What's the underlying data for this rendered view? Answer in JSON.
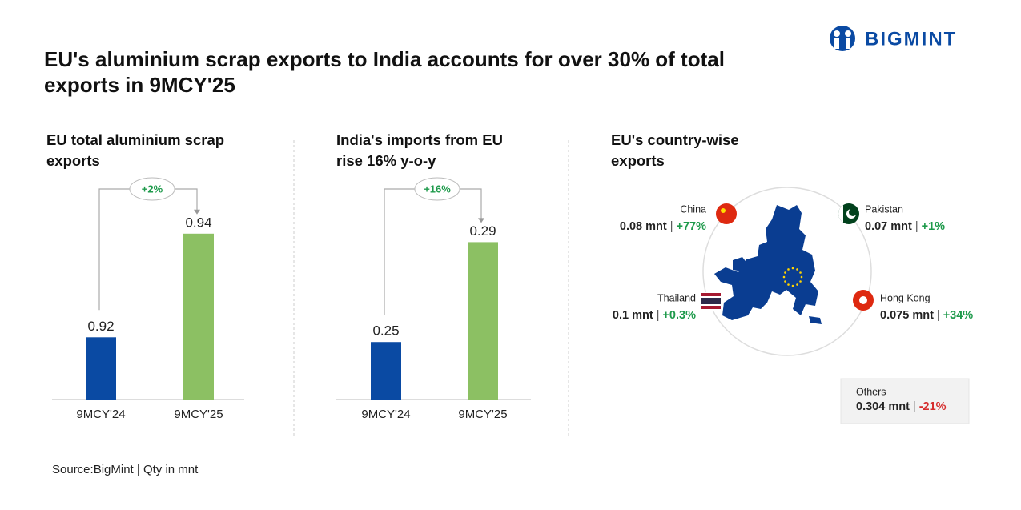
{
  "header": {
    "title": "EU's aluminium scrap exports to India accounts for over 30% of total exports in 9MCY'25",
    "logo": "BIGMINT"
  },
  "chart_data": [
    {
      "type": "bar",
      "title": "EU total aluminium scrap exports",
      "categories": [
        "9MCY'24",
        "9MCY'25"
      ],
      "values": [
        0.92,
        0.94
      ],
      "colors": [
        "#0a4aa3",
        "#8cc063"
      ],
      "ylim": [
        0.908,
        0.948
      ],
      "annotation": "+2%"
    },
    {
      "type": "bar",
      "title": "India's imports from EU rise 16% y-o-y",
      "categories": [
        "9MCY'24",
        "9MCY'25"
      ],
      "values": [
        0.25,
        0.29
      ],
      "colors": [
        "#0a4aa3",
        "#8cc063"
      ],
      "ylim": [
        0.227,
        0.31
      ],
      "annotation": "+16%"
    }
  ],
  "country_panel": {
    "title": "EU's country-wise exports",
    "separator": "|",
    "countries": [
      {
        "name": "China",
        "value": "0.08 mnt",
        "change": "+77%"
      },
      {
        "name": "Pakistan",
        "value": "0.07 mnt",
        "change": "+1%"
      },
      {
        "name": "Thailand",
        "value": "0.1 mnt",
        "change": "+0.3%"
      },
      {
        "name": "Hong Kong",
        "value": "0.075 mnt",
        "change": "+34%"
      }
    ],
    "others": {
      "name": "Others",
      "value": "0.304 mnt",
      "change": "-21%"
    }
  },
  "source": "Source:BigMint | Qty in mnt"
}
